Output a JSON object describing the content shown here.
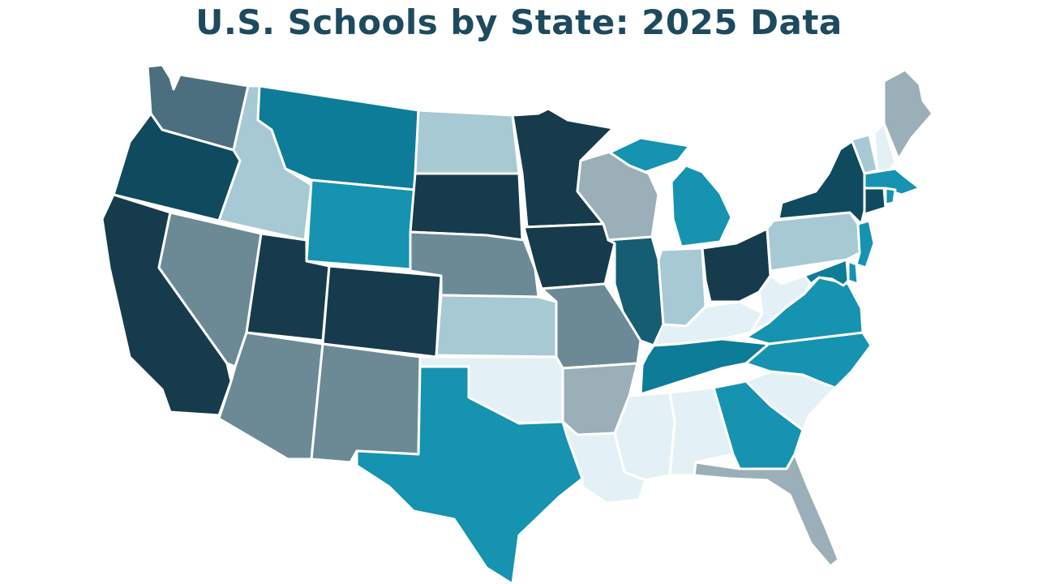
{
  "title": "U.S. Schools by State: 2025 Data",
  "palette": {
    "c1": "#e3f1f6",
    "c2": "#a7c9d3",
    "c3": "#9aafb8",
    "c4": "#6b8a96",
    "c5": "#4b6f7e",
    "c6": "#1593b0",
    "c7": "#0d7c98",
    "c8": "#155d72",
    "c9": "#0f4a5e",
    "c10": "#163b4c"
  },
  "states": [
    {
      "id": "WA",
      "name": "Washington",
      "tier": "c5"
    },
    {
      "id": "OR",
      "name": "Oregon",
      "tier": "c9"
    },
    {
      "id": "CA",
      "name": "California",
      "tier": "c10"
    },
    {
      "id": "ID",
      "name": "Idaho",
      "tier": "c2"
    },
    {
      "id": "NV",
      "name": "Nevada",
      "tier": "c4"
    },
    {
      "id": "MT",
      "name": "Montana",
      "tier": "c7"
    },
    {
      "id": "WY",
      "name": "Wyoming",
      "tier": "c6"
    },
    {
      "id": "UT",
      "name": "Utah",
      "tier": "c10"
    },
    {
      "id": "CO",
      "name": "Colorado",
      "tier": "c10"
    },
    {
      "id": "AZ",
      "name": "Arizona",
      "tier": "c4"
    },
    {
      "id": "NM",
      "name": "New Mexico",
      "tier": "c4"
    },
    {
      "id": "ND",
      "name": "North Dakota",
      "tier": "c2"
    },
    {
      "id": "SD",
      "name": "South Dakota",
      "tier": "c10"
    },
    {
      "id": "NE",
      "name": "Nebraska",
      "tier": "c4"
    },
    {
      "id": "KS",
      "name": "Kansas",
      "tier": "c2"
    },
    {
      "id": "OK",
      "name": "Oklahoma",
      "tier": "c1"
    },
    {
      "id": "TX",
      "name": "Texas",
      "tier": "c6"
    },
    {
      "id": "MN",
      "name": "Minnesota",
      "tier": "c10"
    },
    {
      "id": "IA",
      "name": "Iowa",
      "tier": "c10"
    },
    {
      "id": "MO",
      "name": "Missouri",
      "tier": "c4"
    },
    {
      "id": "AR",
      "name": "Arkansas",
      "tier": "c3"
    },
    {
      "id": "LA",
      "name": "Louisiana",
      "tier": "c1"
    },
    {
      "id": "WI",
      "name": "Wisconsin",
      "tier": "c3"
    },
    {
      "id": "IL",
      "name": "Illinois",
      "tier": "c8"
    },
    {
      "id": "MI",
      "name": "Michigan",
      "tier": "c6"
    },
    {
      "id": "MI-UP",
      "name": "Michigan Upper Peninsula",
      "tier": "c6"
    },
    {
      "id": "IN",
      "name": "Indiana",
      "tier": "c2"
    },
    {
      "id": "OH",
      "name": "Ohio",
      "tier": "c10"
    },
    {
      "id": "KY",
      "name": "Kentucky",
      "tier": "c1"
    },
    {
      "id": "TN",
      "name": "Tennessee",
      "tier": "c7"
    },
    {
      "id": "MS",
      "name": "Mississippi",
      "tier": "c1"
    },
    {
      "id": "AL",
      "name": "Alabama",
      "tier": "c1"
    },
    {
      "id": "GA",
      "name": "Georgia",
      "tier": "c6"
    },
    {
      "id": "FL",
      "name": "Florida",
      "tier": "c3"
    },
    {
      "id": "SC",
      "name": "South Carolina",
      "tier": "c1"
    },
    {
      "id": "NC",
      "name": "North Carolina",
      "tier": "c6"
    },
    {
      "id": "VA",
      "name": "Virginia",
      "tier": "c6"
    },
    {
      "id": "WV",
      "name": "West Virginia",
      "tier": "c1"
    },
    {
      "id": "PA",
      "name": "Pennsylvania",
      "tier": "c2"
    },
    {
      "id": "NY",
      "name": "New York",
      "tier": "c9"
    },
    {
      "id": "VT",
      "name": "Vermont",
      "tier": "c2"
    },
    {
      "id": "NH",
      "name": "New Hampshire",
      "tier": "c1"
    },
    {
      "id": "ME",
      "name": "Maine",
      "tier": "c3"
    },
    {
      "id": "MA",
      "name": "Massachusetts",
      "tier": "c6"
    },
    {
      "id": "CT",
      "name": "Connecticut",
      "tier": "c9"
    },
    {
      "id": "RI",
      "name": "Rhode Island",
      "tier": "c6"
    },
    {
      "id": "NJ",
      "name": "New Jersey",
      "tier": "c6"
    },
    {
      "id": "DE",
      "name": "Delaware",
      "tier": "c6"
    },
    {
      "id": "MD",
      "name": "Maryland",
      "tier": "c7"
    }
  ]
}
